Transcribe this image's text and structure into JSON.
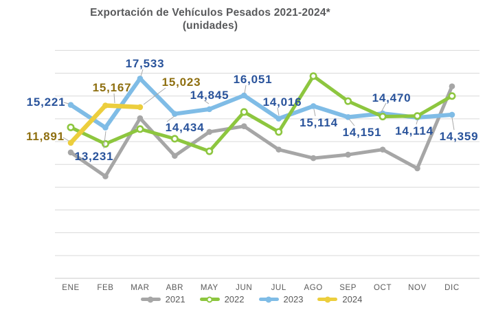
{
  "title": {
    "line1": "Exportación de Vehículos Pesados 2021-2024*",
    "line2": "(unidades)"
  },
  "chart_data": {
    "type": "line",
    "title": "Exportación de Vehículos Pesados 2021-2024* (unidades)",
    "categories": [
      "ENE",
      "FEB",
      "MAR",
      "ABR",
      "MAY",
      "JUN",
      "JUL",
      "AGO",
      "SEP",
      "OCT",
      "NOV",
      "DIC"
    ],
    "series": [
      {
        "name": "2021",
        "color": "#a6a6a6",
        "marker": "dot",
        "values": [
          11050,
          8950,
          14050,
          10750,
          12850,
          13350,
          11300,
          10550,
          10850,
          11300,
          9650,
          16850
        ]
      },
      {
        "name": "2022",
        "color": "#8dc63f",
        "marker": "ring",
        "values": [
          13250,
          11800,
          13100,
          12250,
          11150,
          14600,
          12850,
          17750,
          15550,
          14200,
          14250,
          16000
        ]
      },
      {
        "name": "2023",
        "color": "#7fbce6",
        "label_color": "#29539b",
        "marker": "dot",
        "values": [
          15221,
          13231,
          17533,
          14434,
          14845,
          16051,
          14016,
          15114,
          14151,
          14470,
          14114,
          14359
        ],
        "data_labels": [
          "15,221",
          "13,231",
          "17,533",
          "14,434",
          "14,845",
          "16,051",
          "14,016",
          "15,114",
          "14,151",
          "14,470",
          "14,114",
          "14,359"
        ]
      },
      {
        "name": "2024",
        "color": "#ecce3d",
        "label_color": "#8e6f10",
        "marker": "dot",
        "values": [
          11891,
          15167,
          15023
        ],
        "data_labels": [
          "11,891",
          "15,167",
          "15,023"
        ]
      }
    ],
    "ylim": [
      0,
      20000
    ],
    "gridlines_every": 2000,
    "grid": true,
    "y_axis_labels_visible": false,
    "legend_position": "bottom"
  }
}
